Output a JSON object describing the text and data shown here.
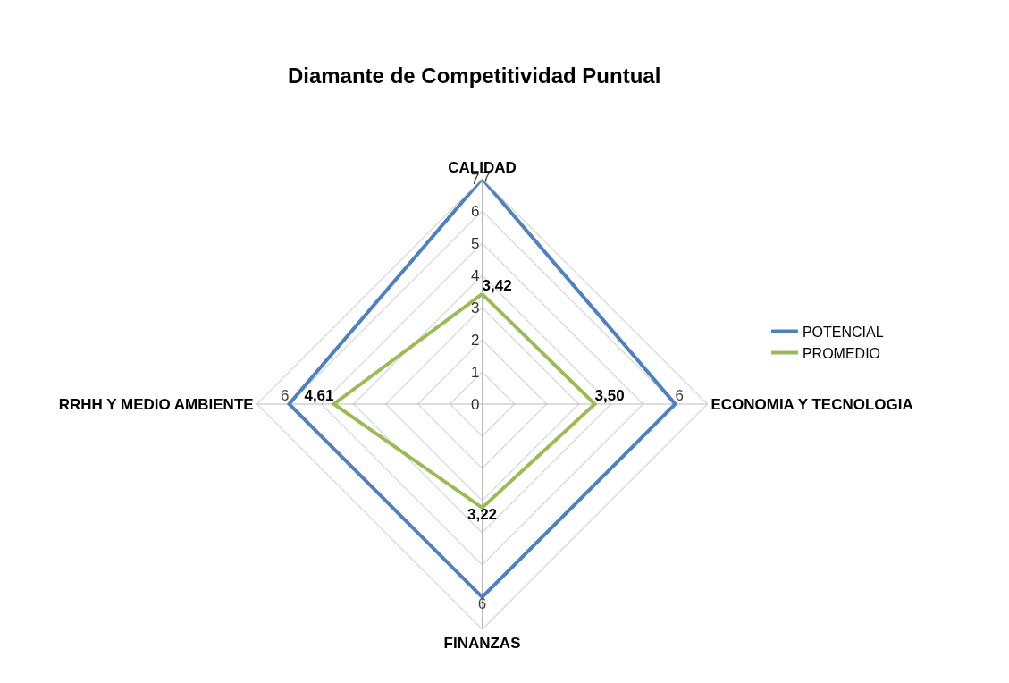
{
  "chart_data": {
    "type": "radar",
    "title": "Diamante de Competitividad Puntual",
    "categories": [
      "CALIDAD",
      "ECONOMIA Y TECNOLOGIA",
      "FINANZAS",
      "RRHH Y MEDIO AMBIENTE"
    ],
    "series": [
      {
        "name": "POTENCIAL",
        "color": "#4f81bd",
        "values": [
          7,
          6,
          6,
          6
        ],
        "value_labels": [
          "7",
          "6",
          "6",
          "6"
        ]
      },
      {
        "name": "PROMEDIO",
        "color": "#9bbb59",
        "values": [
          3.42,
          3.5,
          3.22,
          4.61
        ],
        "value_labels": [
          "3,42",
          "3,50",
          "3,22",
          "4,61"
        ]
      }
    ],
    "ylim": [
      0,
      7
    ],
    "yticks": [
      0,
      1,
      2,
      3,
      4,
      5,
      6,
      7
    ],
    "grid": true,
    "legend": "right",
    "marker": "none",
    "line_style": "solid"
  }
}
